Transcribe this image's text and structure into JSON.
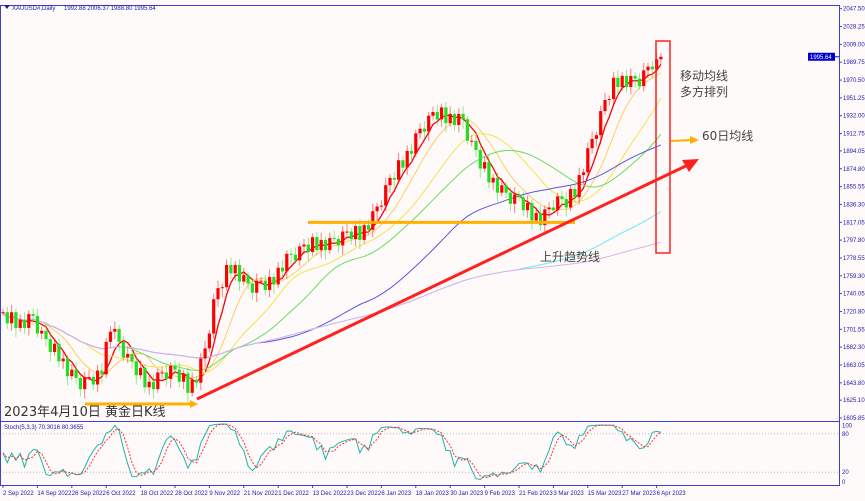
{
  "header": {
    "symbol": "XAUUSD#,Daily",
    "ohlc": "1992.88 2006.37 1988.80 1995.64"
  },
  "annotations": {
    "ma_bullish_line1": "移动均线",
    "ma_bullish_line2": "多方排列",
    "ma60": "60日均线",
    "trendline": "上升趋势线",
    "date_title": "2023年4月10日 黄金日K线"
  },
  "colors": {
    "up_candle": "#ff0000",
    "down_candle": "#22dd22",
    "axis": "#4040d0",
    "annotation_orange": "#ffb000",
    "trendline": "#ff2020"
  },
  "chart_data": [
    {
      "type": "candlestick",
      "title": "XAUUSD#,Daily",
      "current_price": 1995.64,
      "ylim": [
        1605.85,
        2047.5
      ],
      "y_ticks": [
        "2047.50",
        "2028.25",
        "2009.00",
        "1989.75",
        "1970.50",
        "1951.25",
        "1932.00",
        "1912.75",
        "1894.05",
        "1874.80",
        "1855.55",
        "1836.30",
        "1817.05",
        "1797.80",
        "1778.55",
        "1759.30",
        "1740.05",
        "1720.80",
        "1701.55",
        "1682.30",
        "1663.05",
        "1643.80",
        "1625.10",
        "1605.85"
      ],
      "x_ticks": [
        "2 Sep 2022",
        "14 Sep 2022",
        "26 Sep 2022",
        "6 Oct 2022",
        "18 Oct 2022",
        "28 Oct 2022",
        "9 Nov 2022",
        "21 Nov 2022",
        "1 Dec 2022",
        "13 Dec 2022",
        "23 Dec 2022",
        "6 Jan 2023",
        "18 Jan 2023",
        "30 Jan 2023",
        "9 Feb 2023",
        "21 Feb 2023",
        "3 Mar 2023",
        "15 Mar 2023",
        "27 Mar 2023",
        "6 Apr 2023"
      ],
      "x_tick_every_bars": 8,
      "closes": [
        1720,
        1708,
        1720,
        1703,
        1712,
        1703,
        1718,
        1716,
        1697,
        1700,
        1691,
        1677,
        1686,
        1667,
        1670,
        1651,
        1658,
        1649,
        1637,
        1650,
        1650,
        1642,
        1657,
        1653,
        1688,
        1699,
        1702,
        1688,
        1671,
        1675,
        1667,
        1652,
        1660,
        1639,
        1645,
        1637,
        1655,
        1655,
        1648,
        1662,
        1658,
        1645,
        1654,
        1633,
        1647,
        1644,
        1670,
        1681,
        1697,
        1734,
        1746,
        1747,
        1771,
        1762,
        1771,
        1753,
        1760,
        1751,
        1741,
        1754,
        1754,
        1744,
        1758,
        1750,
        1768,
        1764,
        1783,
        1782,
        1776,
        1791,
        1793,
        1785,
        1801,
        1787,
        1798,
        1787,
        1800,
        1799,
        1792,
        1807,
        1807,
        1799,
        1813,
        1798,
        1814,
        1809,
        1829,
        1834,
        1835,
        1857,
        1865,
        1863,
        1884,
        1876,
        1894,
        1891,
        1913,
        1918,
        1915,
        1932,
        1936,
        1928,
        1941,
        1924,
        1934,
        1922,
        1934,
        1928,
        1905,
        1905,
        1895,
        1875,
        1882,
        1860,
        1865,
        1849,
        1857,
        1849,
        1837,
        1847,
        1844,
        1830,
        1838,
        1819,
        1827,
        1814,
        1831,
        1833,
        1830,
        1845,
        1842,
        1833,
        1853,
        1844,
        1868,
        1871,
        1897,
        1907,
        1911,
        1937,
        1949,
        1950,
        1973,
        1963,
        1975,
        1963,
        1975,
        1972,
        1964,
        1981,
        1985,
        1982,
        1992.88,
        1995.64
      ],
      "moving_averages": [
        {
          "period": 5,
          "color": "#ff0000"
        },
        {
          "period": 10,
          "color": "#ffcc66"
        },
        {
          "period": 20,
          "color": "#f5e050"
        },
        {
          "period": 30,
          "color": "#66dd66"
        },
        {
          "period": 60,
          "color": "#5555dd"
        },
        {
          "period": 120,
          "color": "#66eeee"
        },
        {
          "period": 200,
          "color": "#e0b0e8"
        }
      ],
      "support_levels": [
        1621,
        1817
      ]
    },
    {
      "type": "line",
      "title": "Stoch(5,3,3) 70.3016 80.3655",
      "ylim": [
        0,
        100
      ],
      "y_ticks": [
        "100",
        "80",
        "20",
        "0"
      ],
      "levels": [
        80,
        20
      ],
      "series": [
        {
          "name": "%K",
          "color": "#20b2aa"
        },
        {
          "name": "%D",
          "color": "#ff3030"
        }
      ]
    }
  ]
}
